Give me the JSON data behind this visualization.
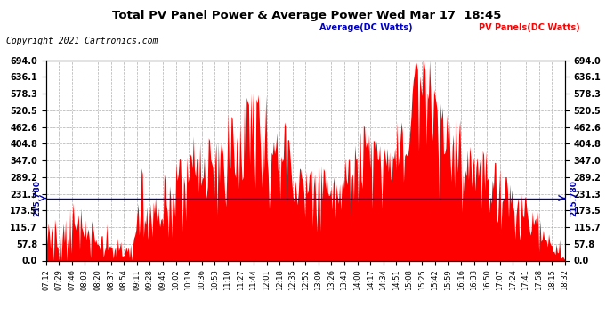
{
  "title": "Total PV Panel Power & Average Power Wed Mar 17  18:45",
  "copyright": "Copyright 2021 Cartronics.com",
  "legend_avg": "Average(DC Watts)",
  "legend_pv": "PV Panels(DC Watts)",
  "avg_value": 215.78,
  "avg_label": "215.780",
  "ymin": 0.0,
  "ymax": 694.0,
  "yticks": [
    0.0,
    57.8,
    115.7,
    173.5,
    231.3,
    289.2,
    347.0,
    404.8,
    462.6,
    520.5,
    578.3,
    636.1,
    694.0
  ],
  "bg_color": "#ffffff",
  "fill_color": "#ff0000",
  "avg_line_color": "#0000aa",
  "grid_color": "#999999",
  "title_color": "#000000",
  "copyright_color": "#000000",
  "legend_avg_color": "#0000cc",
  "legend_pv_color": "#ff0000",
  "x_labels": [
    "07:12",
    "07:29",
    "07:46",
    "08:03",
    "08:20",
    "08:37",
    "08:54",
    "09:11",
    "09:28",
    "09:45",
    "10:02",
    "10:19",
    "10:36",
    "10:53",
    "11:10",
    "11:27",
    "11:44",
    "12:01",
    "12:18",
    "12:35",
    "12:52",
    "13:09",
    "13:26",
    "13:43",
    "14:00",
    "14:17",
    "14:34",
    "14:51",
    "15:08",
    "15:25",
    "15:42",
    "15:59",
    "16:16",
    "16:33",
    "16:50",
    "17:07",
    "17:24",
    "17:41",
    "17:58",
    "18:15",
    "18:32"
  ]
}
